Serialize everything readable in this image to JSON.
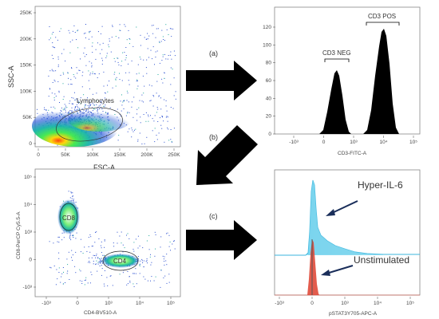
{
  "scatter1": {
    "ylabel": "SSC-A",
    "xlabel": "FSC-A",
    "yticks": [
      "250K",
      "200K",
      "150K",
      "100K",
      "50K",
      "0"
    ],
    "xticks": [
      "0",
      "50K",
      "100K",
      "150K",
      "200K",
      "250K"
    ],
    "gate": "Lymphocytes"
  },
  "hist1": {
    "yticks": [
      "120",
      "100",
      "80",
      "60",
      "40",
      "20",
      "0"
    ],
    "xticks": [
      "-10³",
      "0",
      "10³",
      "10⁴",
      "10⁵"
    ],
    "xlabel": "CD3-FITC-A",
    "gate_neg": "CD3 NEG",
    "gate_pos": "CD3 POS"
  },
  "scatter2": {
    "ylabel": "CD8-PerCP Cy5.5-A",
    "xlabel": "CD4-BV510-A",
    "yticks": [
      "10⁵",
      "10⁴",
      "10³",
      "0",
      "-10³"
    ],
    "xticks": [
      "-10³",
      "0",
      "10³",
      "10⁴",
      "10⁵"
    ],
    "gate_cd8": "CD8",
    "gate_cd4": "CD4"
  },
  "hist2": {
    "xticks": [
      "-10³",
      "0",
      "10³",
      "10⁴",
      "10⁵"
    ],
    "xlabel": "pSTAT3Y705-APC-A",
    "label_stim": "Hyper-IL-6",
    "label_unstim": "Unstimulated"
  },
  "steps": {
    "a": "(a)",
    "b": "(b)",
    "c": "(c)"
  },
  "colors": {
    "arrow": "#000000",
    "hyper": "#5bc8e8",
    "unstim": "#e04a3a",
    "annot_arrow": "#1a2e5a"
  }
}
